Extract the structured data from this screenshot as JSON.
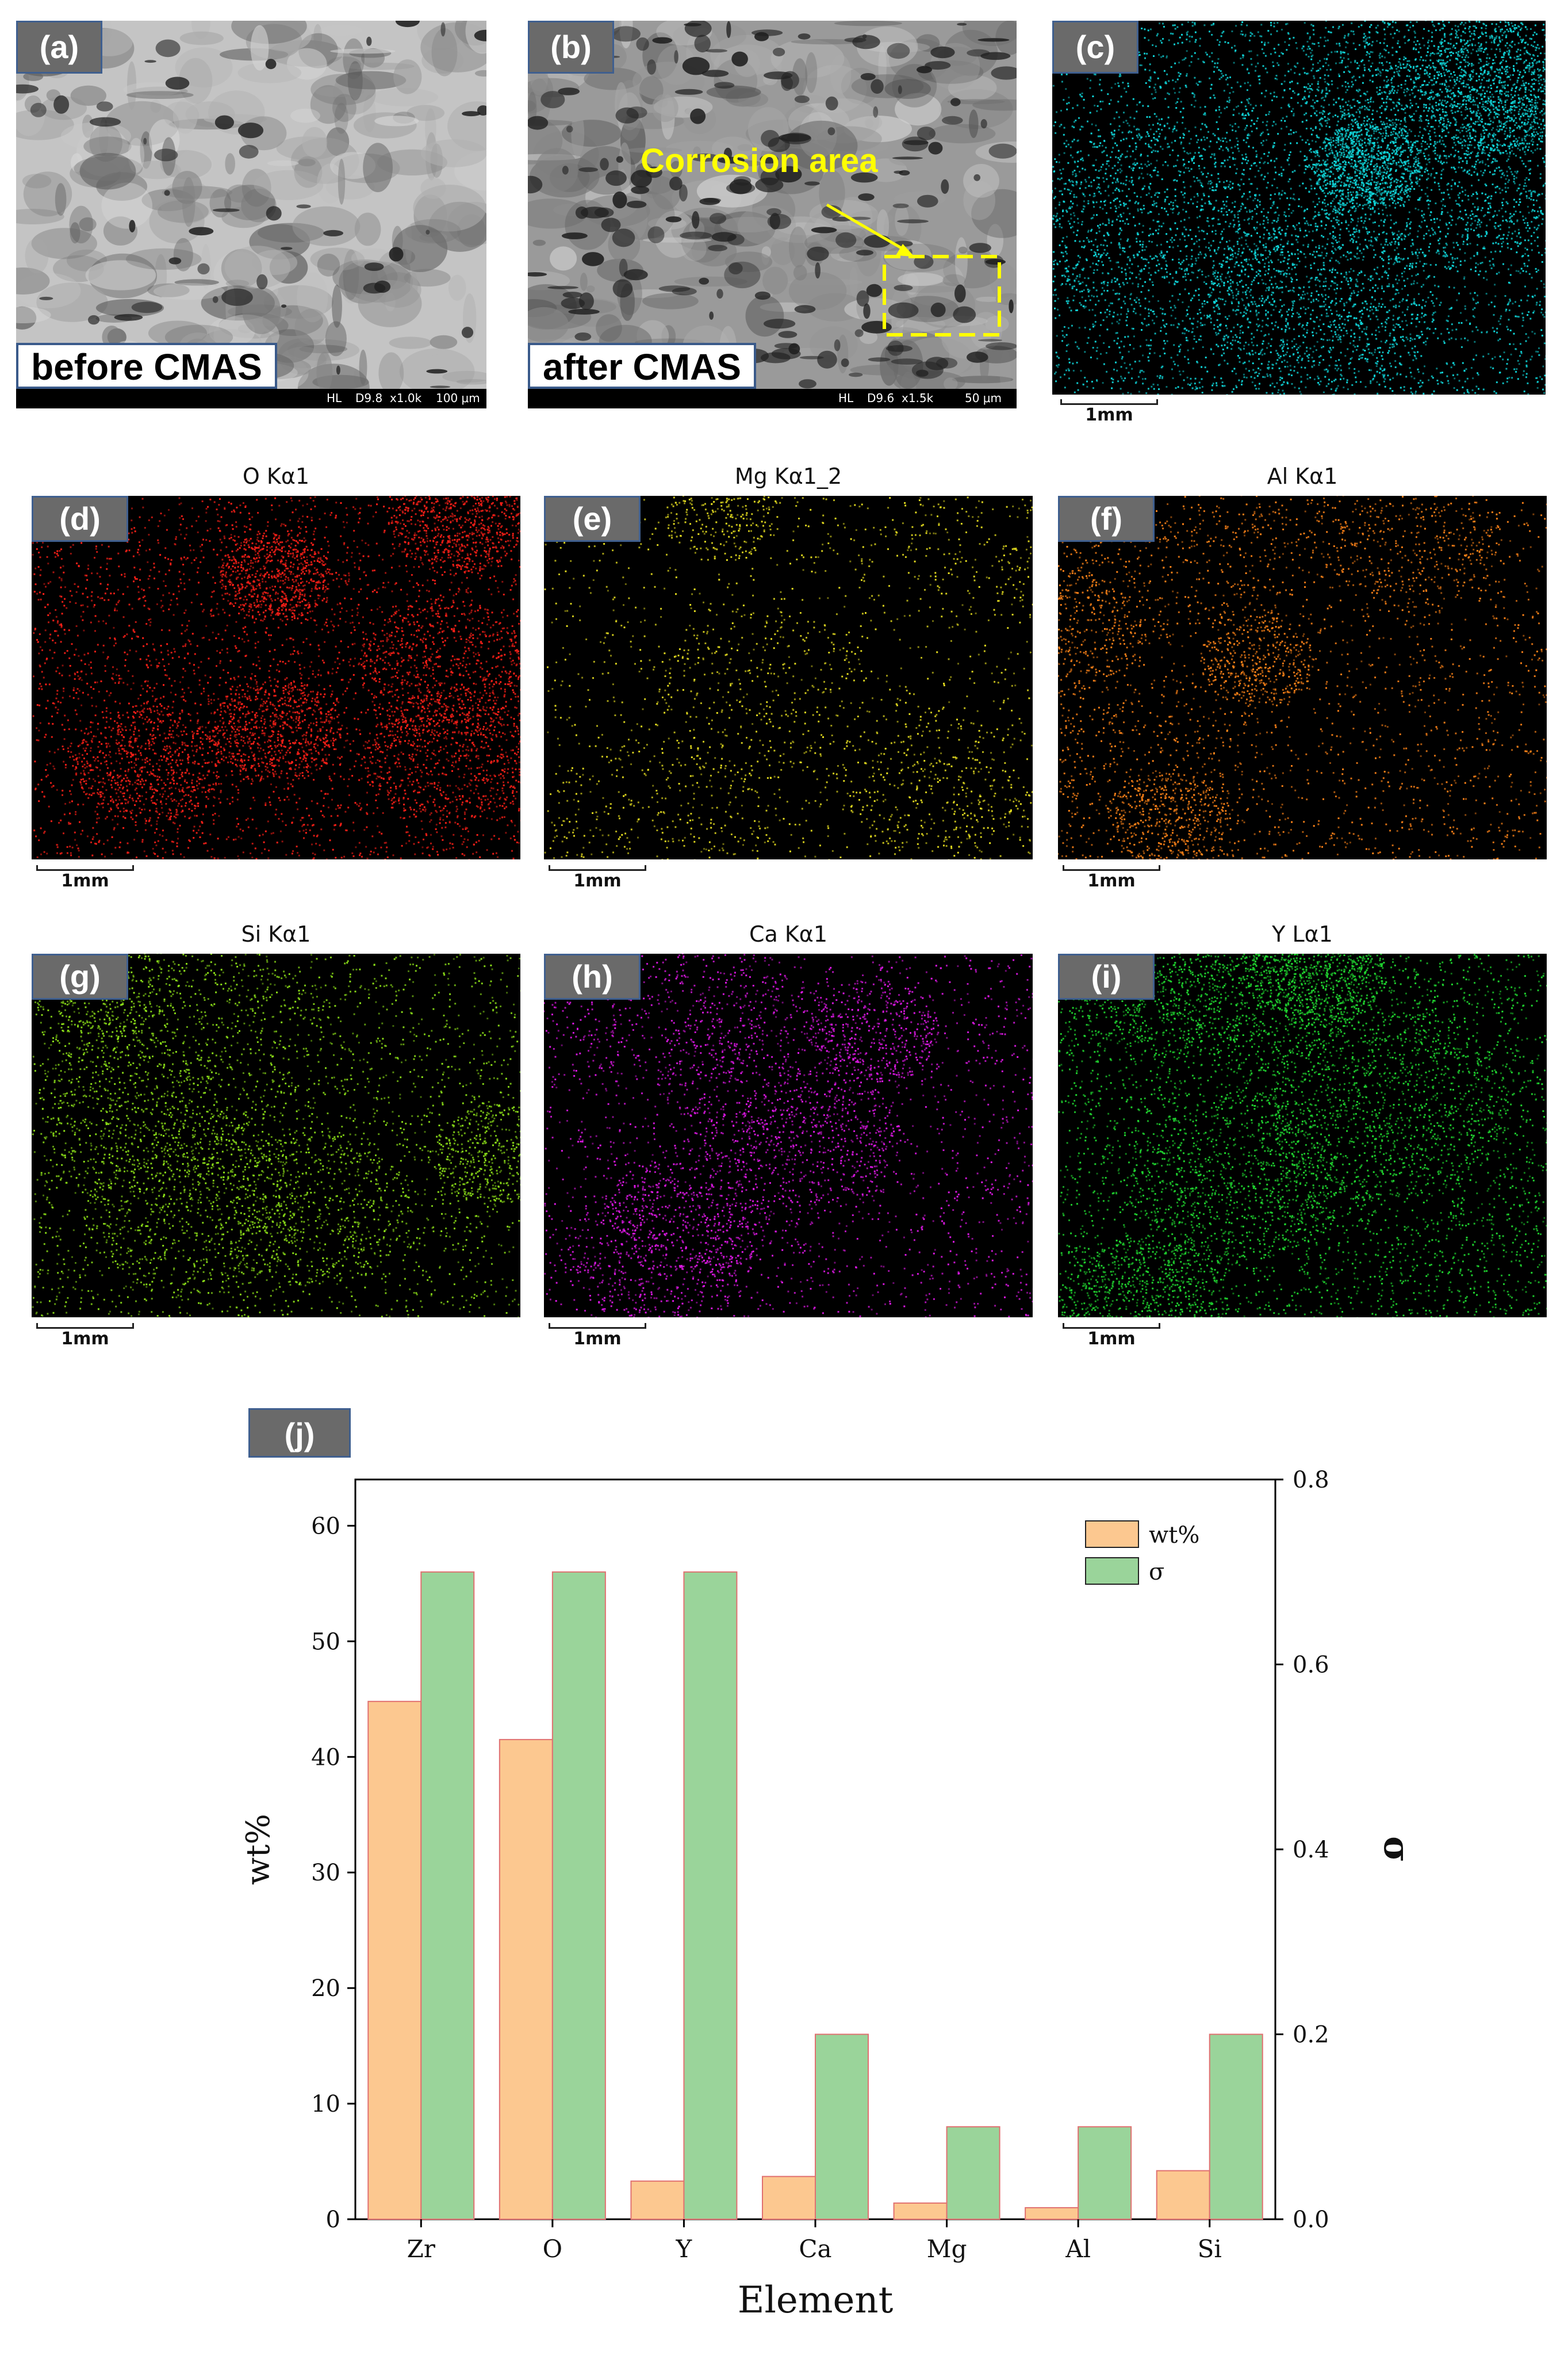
{
  "panels": {
    "a": {
      "label": "(a)",
      "caption": "before CMAS",
      "sem_info": [
        "HL",
        "D9.8",
        "x1.0k",
        "100 μm"
      ]
    },
    "b": {
      "label": "(b)",
      "caption": "after CMAS",
      "annotation": "Corrosion area",
      "sem_info": [
        "HL",
        "D9.6",
        "x1.5k",
        "50 μm"
      ]
    },
    "c": {
      "label": "(c)",
      "scale": "1mm",
      "color": "#10d8dc"
    },
    "d": {
      "label": "(d)",
      "title": "O Kα1",
      "scale": "1mm",
      "color": "#ff2018"
    },
    "e": {
      "label": "(e)",
      "title": "Mg Kα1_2",
      "scale": "1mm",
      "color": "#e8e020"
    },
    "f": {
      "label": "(f)",
      "title": "Al Kα1",
      "scale": "1mm",
      "color": "#ff8418"
    },
    "g": {
      "label": "(g)",
      "title": "Si Kα1",
      "scale": "1mm",
      "color": "#8ce018"
    },
    "h": {
      "label": "(h)",
      "title": "Ca Kα1",
      "scale": "1mm",
      "color": "#e018e8"
    },
    "i": {
      "label": "(i)",
      "title": "Y Lα1",
      "scale": "1mm",
      "color": "#20d830"
    },
    "j": {
      "label": "(j)"
    }
  },
  "chart_data": {
    "type": "bar",
    "categories": [
      "Zr",
      "O",
      "Y",
      "Ca",
      "Mg",
      "Al",
      "Si"
    ],
    "series": [
      {
        "name": "wt%",
        "axis": "left",
        "values": [
          44.8,
          41.5,
          3.3,
          3.7,
          1.4,
          1.0,
          4.2
        ],
        "color": "#fcc890"
      },
      {
        "name": "σ",
        "axis": "right",
        "values": [
          0.7,
          0.7,
          0.7,
          0.2,
          0.1,
          0.1,
          0.2
        ],
        "color": "#9ad49a"
      }
    ],
    "xlabel": "Element",
    "ylabel": "wt%",
    "y2label": "σ",
    "ylim": [
      0,
      64
    ],
    "y2lim": [
      0,
      0.8
    ],
    "yticks": [
      "0",
      "10",
      "20",
      "30",
      "40",
      "50",
      "60"
    ],
    "y2ticks": [
      "0.0",
      "0.2",
      "0.4",
      "0.6",
      "0.8"
    ],
    "legend_position": "top-right",
    "bar_edge_color": "#e07070"
  }
}
